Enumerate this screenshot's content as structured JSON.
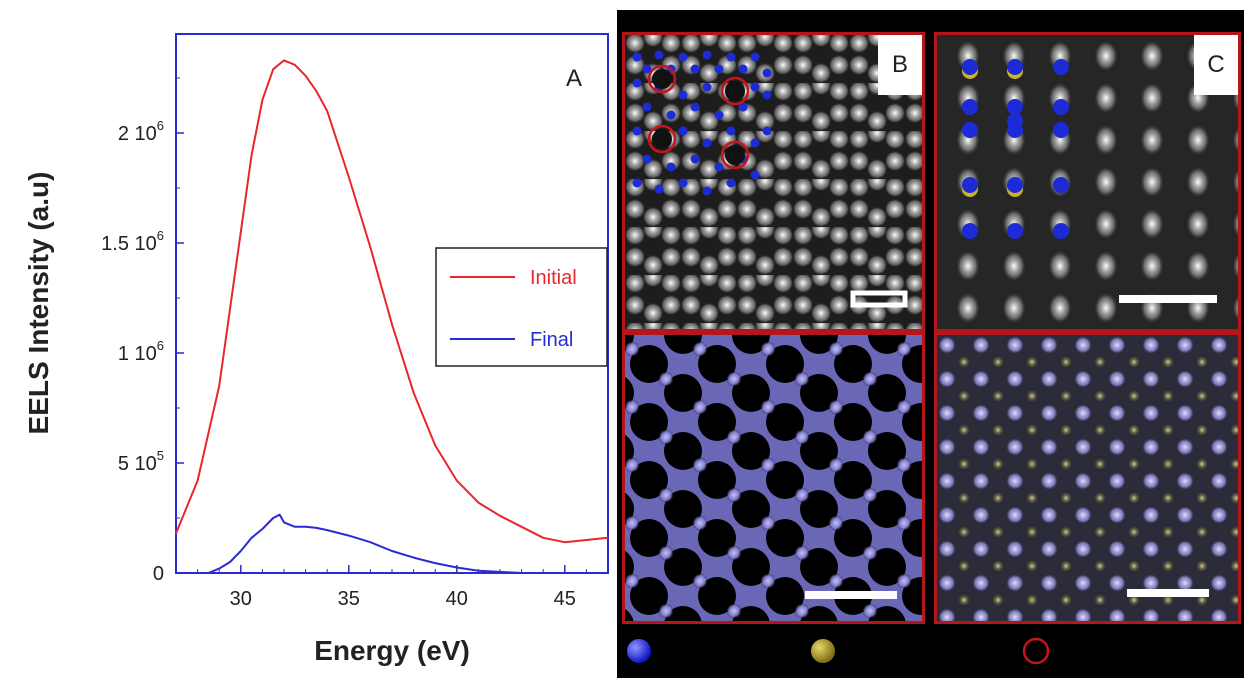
{
  "figure": {
    "panel_a_label": "A",
    "panel_b_label": "B",
    "panel_c_label": "C"
  },
  "chart_data": {
    "type": "line",
    "title": "",
    "xlabel": "Energy (eV)",
    "ylabel": "EELS Intensity (a.u)",
    "xlim": [
      27,
      47
    ],
    "ylim": [
      0,
      2450000
    ],
    "xticks": [
      30,
      35,
      40,
      45
    ],
    "yticks": [
      {
        "value": 0,
        "label": "0",
        "exp": ""
      },
      {
        "value": 500000,
        "label": "5 10",
        "exp": "5"
      },
      {
        "value": 1000000,
        "label": "1 10",
        "exp": "6"
      },
      {
        "value": 1500000,
        "label": "1.5 10",
        "exp": "6"
      },
      {
        "value": 2000000,
        "label": "2 10",
        "exp": "6"
      }
    ],
    "legend": {
      "position": "right",
      "entries": [
        "Initial",
        "Final"
      ]
    },
    "grid": false,
    "series": [
      {
        "name": "Initial",
        "color": "#e8262b",
        "x": [
          27,
          28,
          29,
          30,
          30.5,
          31,
          31.5,
          32,
          32.5,
          33,
          33.5,
          34,
          35,
          36,
          37,
          38,
          39,
          40,
          41,
          42,
          43,
          44,
          45,
          46,
          47
        ],
        "y": [
          180000,
          420000,
          850000,
          1550000,
          1900000,
          2150000,
          2290000,
          2330000,
          2310000,
          2260000,
          2190000,
          2100000,
          1800000,
          1480000,
          1130000,
          820000,
          580000,
          420000,
          320000,
          260000,
          210000,
          160000,
          140000,
          150000,
          160000
        ]
      },
      {
        "name": "Final",
        "color": "#2a2bd1",
        "x": [
          28.5,
          29,
          29.5,
          30,
          30.5,
          31,
          31.5,
          31.8,
          32,
          32.5,
          33,
          33.5,
          34,
          35,
          36,
          37,
          38,
          39,
          40,
          41,
          42,
          43,
          47
        ],
        "y": [
          0,
          20000,
          50000,
          100000,
          160000,
          200000,
          250000,
          265000,
          230000,
          210000,
          210000,
          205000,
          195000,
          170000,
          140000,
          100000,
          70000,
          45000,
          25000,
          10000,
          5000,
          0,
          0
        ]
      }
    ]
  },
  "micrographs": {
    "background": "#000000",
    "frame_color": "#b3171b",
    "overlay_blue": "#1c2bd6",
    "overlay_yellow": "#c9b32a",
    "overlay_red_ring": "#c4161c",
    "tint_blue": "#9a97e8",
    "tint_yellow": "#c8c27a"
  }
}
